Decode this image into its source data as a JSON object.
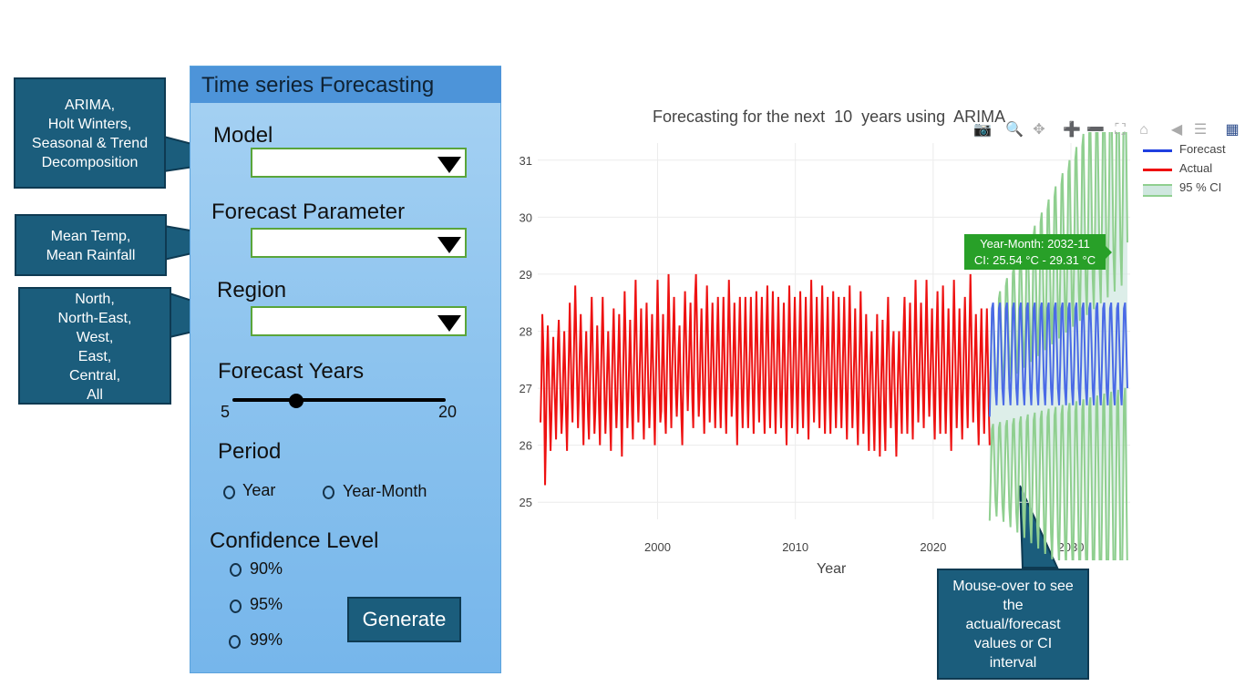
{
  "callouts": {
    "model": [
      "ARIMA,",
      "Holt Winters,",
      "Seasonal & Trend",
      "Decomposition"
    ],
    "parameter": [
      "Mean Temp,",
      "Mean Rainfall"
    ],
    "region": [
      "North,",
      "North-East,",
      "West,",
      "East,",
      "Central,",
      "All"
    ],
    "mouseover": [
      "Mouse-over to see",
      "the",
      "actual/forecast",
      "values or CI",
      "interval"
    ]
  },
  "panel": {
    "title": "Time series Forecasting",
    "model_label": "Model",
    "model_value": "",
    "param_label": "Forecast Parameter",
    "param_value": "",
    "region_label": "Region",
    "region_value": "",
    "years_label": "Forecast Years",
    "years_min": "5",
    "years_max": "20",
    "years_value": 10,
    "period_label": "Period",
    "period_options": [
      "Year",
      "Year-Month"
    ],
    "confidence_label": "Confidence Level",
    "confidence_options": [
      "90%",
      "95%",
      "99%"
    ],
    "generate_label": "Generate"
  },
  "toolbar_icons": [
    "camera-icon",
    "zoom-icon",
    "pan-icon",
    "zoom-in-icon",
    "zoom-out-icon",
    "autoscale-icon",
    "home-icon",
    "spike-lines-icon",
    "compare-hover-icon",
    "plotly-logo-icon"
  ],
  "colors": {
    "forecast": "#1f3fe0",
    "actual": "#ee1111",
    "ci": "#8fcf8f",
    "tooltip": "#28a028"
  },
  "chart_data": {
    "type": "line",
    "title": "Forecasting for the next  10  years using  ARIMA",
    "xlabel": "Year",
    "ylabel": "",
    "xlim": [
      1991.3,
      2034.3
    ],
    "ylim": [
      24.7,
      31.3
    ],
    "x_ticks": [
      "2000",
      "2010",
      "2020",
      "2030"
    ],
    "y_ticks": [
      "25",
      "26",
      "27",
      "28",
      "29",
      "30",
      "31"
    ],
    "legend": [
      "Forecast",
      "Actual",
      "95 % CI"
    ],
    "series": [
      {
        "name": "Actual",
        "x_start": 1991.5,
        "x_end": 2024.1,
        "values": [
          26.4,
          27.1,
          28.3,
          27.8,
          26.9,
          25.3,
          26.2,
          27.5,
          28.1,
          27.4,
          26.6,
          25.9,
          26.5,
          27.3,
          27.9,
          27.2,
          26.7,
          26.1,
          27.0,
          27.8,
          28.2,
          27.5,
          26.8,
          26.2,
          26.6,
          27.4,
          28.0,
          27.3,
          26.5,
          25.9,
          26.8,
          27.6,
          28.5,
          27.7,
          26.9,
          26.4,
          27.2,
          28.0,
          28.8,
          28.0,
          27.1,
          26.3,
          26.9,
          27.7,
          28.3,
          27.6,
          26.7,
          26.0,
          26.8,
          27.5,
          28.0,
          27.2,
          26.5,
          26.1,
          27.0,
          27.9,
          28.6,
          27.8,
          26.9,
          26.2,
          26.6,
          27.3,
          28.1,
          27.4,
          26.6,
          26.0,
          27.1,
          27.9,
          28.6,
          27.7,
          26.8,
          26.2,
          26.7,
          27.4,
          28.0,
          27.3,
          26.5,
          25.9,
          27.0,
          27.8,
          28.4,
          27.6,
          26.8,
          26.3,
          26.8,
          27.6,
          28.3,
          27.5,
          26.6,
          25.8,
          26.9,
          27.8,
          28.7,
          27.9,
          27.0,
          26.3,
          26.8,
          27.5,
          28.2,
          27.4,
          26.6,
          26.1,
          27.2,
          28.1,
          28.9,
          27.9,
          27.0,
          26.4,
          27.0,
          27.7,
          28.4,
          27.6,
          26.7,
          26.1,
          26.9,
          27.8,
          28.5,
          27.7,
          26.9,
          26.3,
          26.8,
          27.6,
          28.3,
          27.5,
          26.7,
          26.0,
          27.0,
          27.9,
          28.9,
          28.0,
          27.1,
          26.4,
          26.6,
          27.5,
          28.3,
          27.4,
          26.6,
          26.2,
          27.1,
          28.0,
          29.0,
          28.1,
          27.0,
          26.3,
          27.3,
          28.0,
          28.6,
          27.7,
          26.9,
          26.5,
          27.0,
          27.7,
          28.1,
          27.2,
          26.5,
          26.0,
          27.1,
          28.0,
          28.7,
          28.0,
          27.2,
          26.6,
          27.2,
          27.9,
          28.5,
          27.6,
          26.8,
          26.3,
          27.5,
          28.6,
          29.0,
          28.2,
          27.2,
          26.5,
          26.9,
          27.8,
          28.4,
          27.6,
          26.8,
          26.2,
          27.1,
          28.0,
          28.8,
          28.0,
          27.1,
          26.4,
          27.0,
          27.8,
          28.5,
          27.7,
          26.9,
          26.3,
          27.0,
          27.9,
          28.6,
          27.8,
          26.9,
          26.3,
          27.0,
          27.8,
          28.6,
          27.7,
          26.8,
          26.2,
          27.1,
          28.0,
          28.9,
          28.1,
          27.2,
          26.5,
          26.9,
          27.7,
          28.5,
          27.7,
          26.8,
          26.0,
          27.1,
          27.9,
          28.6,
          27.8,
          26.9,
          26.3,
          27.0,
          27.8,
          28.6,
          27.8,
          26.9,
          26.3,
          27.0,
          27.8,
          28.6,
          27.7,
          26.9,
          26.2,
          27.0,
          27.8,
          28.7,
          27.9,
          27.0,
          26.4,
          27.1,
          27.9,
          28.6,
          27.7,
          26.8,
          26.2,
          27.1,
          28.1,
          28.8,
          27.9,
          27.0,
          26.3,
          27.0,
          27.9,
          28.7,
          27.8,
          26.9,
          26.2,
          27.0,
          27.8,
          28.6,
          27.8,
          26.9,
          26.3,
          26.9,
          27.7,
          28.5,
          27.6,
          26.7,
          26.0,
          27.1,
          27.9,
          28.8,
          27.9,
          27.0,
          26.3,
          27.0,
          27.8,
          28.6,
          27.8,
          26.9,
          26.2,
          27.1,
          27.9,
          28.7,
          27.8,
          26.9,
          26.3,
          27.0,
          27.8,
          28.6,
          27.7,
          26.8,
          26.1,
          27.1,
          28.0,
          28.9,
          28.0,
          27.1,
          26.4,
          27.0,
          27.8,
          28.6,
          27.8,
          26.9,
          26.3,
          27.1,
          28.0,
          28.8,
          27.9,
          26.9,
          26.2,
          27.0,
          27.8,
          28.6,
          27.7,
          26.8,
          26.2,
          27.0,
          27.9,
          28.7,
          27.8,
          26.9,
          26.3,
          27.0,
          27.8,
          28.6,
          27.8,
          26.9,
          26.3,
          27.0,
          27.8,
          28.6,
          27.7,
          26.8,
          26.1,
          27.0,
          27.9,
          28.8,
          27.9,
          27.0,
          26.3,
          26.9,
          27.6,
          28.4,
          27.5,
          26.6,
          26.0,
          26.9,
          27.8,
          28.7,
          27.8,
          26.9,
          26.2,
          26.8,
          27.6,
          28.3,
          27.5,
          26.6,
          25.9,
          26.9,
          27.6,
          28.0,
          27.3,
          26.5,
          25.9,
          26.7,
          27.5,
          28.3,
          27.4,
          26.6,
          25.8,
          26.8,
          27.5,
          28.2,
          27.3,
          26.4,
          25.9,
          27.1,
          28.0,
          28.6,
          27.7,
          26.8,
          26.3,
          27.0,
          27.7,
          28.0,
          27.1,
          26.5,
          25.8,
          26.6,
          27.4,
          28.0,
          27.3,
          26.7,
          26.2,
          27.3,
          28.1,
          28.6,
          27.7,
          26.9,
          26.2,
          27.0,
          27.8,
          28.5,
          27.6,
          26.8,
          26.1,
          27.1,
          28.0,
          28.9,
          28.0,
          27.1,
          26.4,
          27.0,
          27.8,
          28.5,
          27.8,
          26.9,
          26.3,
          27.2,
          28.0,
          28.9,
          28.0,
          27.1,
          26.5,
          27.0,
          27.7,
          28.4,
          27.6,
          26.7,
          26.1,
          27.1,
          28.0,
          28.7,
          27.8,
          26.9,
          26.2,
          27.0,
          27.9,
          28.8,
          27.9,
          26.9,
          26.2,
          26.9,
          27.6,
          28.4,
          27.6,
          26.6,
          25.9,
          27.0,
          27.9,
          28.9,
          28.0,
          27.1,
          26.3,
          26.9,
          27.6,
          28.4,
          27.6,
          26.7,
          26.1,
          27.0,
          27.9,
          28.6,
          27.8,
          26.9,
          26.3,
          27.2,
          28.1,
          29.0,
          28.1,
          27.1,
          26.4,
          27.0,
          27.7,
          28.3,
          27.5,
          26.6,
          26.0,
          26.9,
          27.7,
          28.4,
          27.6,
          26.8,
          26.2,
          27.0,
          27.7,
          28.4,
          27.6,
          26.7,
          26.0
        ]
      },
      {
        "name": "Forecast",
        "x_start": 2024.1,
        "x_end": 2034.1,
        "values": [
          26.5,
          27.4,
          28.4,
          28.5,
          27.8,
          27.0,
          26.7,
          27.4,
          28.4,
          28.5,
          27.8,
          27.0,
          26.7,
          27.4,
          28.4,
          28.5,
          27.8,
          27.0,
          26.7,
          27.4,
          28.4,
          28.5,
          27.8,
          27.0,
          26.7,
          27.4,
          28.4,
          28.5,
          27.8,
          27.0,
          26.7,
          27.4,
          28.4,
          28.5,
          27.8,
          27.0,
          26.7,
          27.4,
          28.4,
          28.5,
          27.8,
          27.0,
          26.7,
          27.4,
          28.4,
          28.5,
          27.8,
          27.0,
          26.7,
          27.4,
          28.4,
          28.5,
          27.8,
          27.0,
          26.7,
          27.4,
          28.4,
          28.5,
          27.8,
          27.0,
          26.7,
          27.4,
          28.4,
          28.5,
          27.8,
          27.0,
          26.7,
          27.4,
          28.4,
          28.5,
          27.8,
          27.0,
          26.7,
          27.4,
          28.4,
          28.5,
          27.8,
          27.0,
          26.7,
          27.4,
          28.4,
          28.5,
          27.8,
          27.0,
          26.7,
          27.4,
          28.4,
          28.5,
          27.8,
          27.0,
          26.7,
          27.4,
          28.4,
          28.5,
          27.8,
          27.0,
          26.7,
          27.4,
          28.4,
          28.5,
          27.8,
          27.0,
          26.7,
          27.4,
          28.4,
          28.5,
          27.8,
          27.0,
          26.7,
          27.4,
          28.4,
          28.5,
          27.8,
          27.0,
          26.7,
          27.4,
          28.4,
          28.5,
          27.8,
          27.0
        ]
      },
      {
        "name": "95 % CI",
        "x_start": 2024.1,
        "x_end": 2034.1,
        "lower_start": 25.6,
        "lower_end": 25.0,
        "upper_start": 27.6,
        "upper_end": 30.9
      }
    ],
    "tooltip": [
      "Year-Month:  2032-11",
      "CI: 25.54 °C - 29.31 °C"
    ]
  }
}
